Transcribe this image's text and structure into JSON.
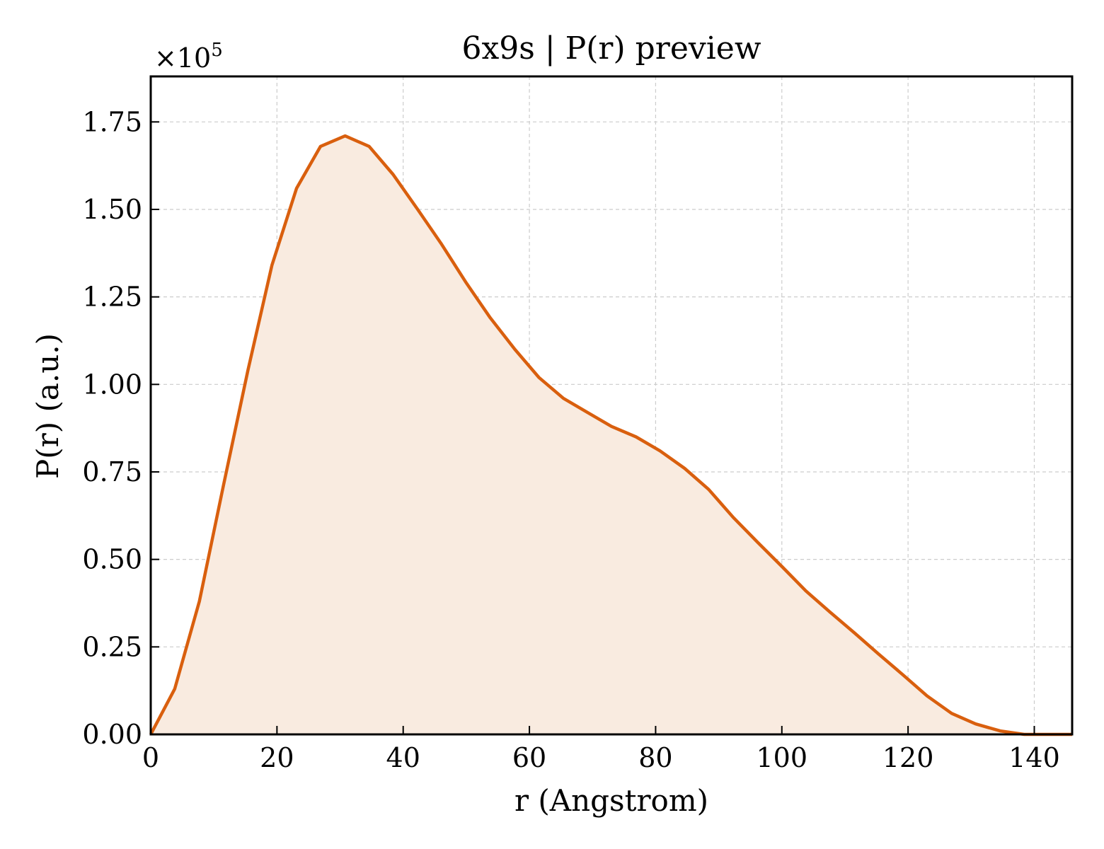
{
  "chart_data": {
    "type": "area",
    "title": "6x9s | P(r) preview",
    "xlabel": "r (Angstrom)",
    "ylabel": "P(r) (a.u.)",
    "y_multiplier_label": "×10",
    "y_multiplier_exponent": "5",
    "y_scale": 100000,
    "xlim": [
      0,
      146
    ],
    "ylim": [
      0,
      1.88
    ],
    "xticks": [
      0,
      20,
      40,
      60,
      80,
      100,
      120,
      140
    ],
    "xtick_labels": [
      "0",
      "20",
      "40",
      "60",
      "80",
      "100",
      "120",
      "140"
    ],
    "yticks": [
      0,
      0.25,
      0.5,
      0.75,
      1.0,
      1.25,
      1.5,
      1.75
    ],
    "ytick_labels": [
      "0.00",
      "0.25",
      "0.50",
      "0.75",
      "1.00",
      "1.25",
      "1.50",
      "1.75"
    ],
    "grid": true,
    "line_color": "#d95f0e",
    "fill_color": "#f9ebe0",
    "series": [
      {
        "x": [
          0,
          3.8,
          7.7,
          11.5,
          15.4,
          19.2,
          23.1,
          26.9,
          30.8,
          34.6,
          38.4,
          42.3,
          46.1,
          50.0,
          53.8,
          57.7,
          61.5,
          65.4,
          69.2,
          73.0,
          76.9,
          80.7,
          84.6,
          88.4,
          92.3,
          96.1,
          100.0,
          103.8,
          107.6,
          111.5,
          115.3,
          119.2,
          123.0,
          126.9,
          130.7,
          134.6,
          138.4,
          142.2,
          146.0
        ],
        "y": [
          0.0,
          0.13,
          0.38,
          0.71,
          1.04,
          1.34,
          1.56,
          1.68,
          1.71,
          1.68,
          1.6,
          1.5,
          1.4,
          1.29,
          1.19,
          1.1,
          1.02,
          0.96,
          0.92,
          0.88,
          0.85,
          0.81,
          0.76,
          0.7,
          0.62,
          0.55,
          0.48,
          0.41,
          0.35,
          0.29,
          0.23,
          0.17,
          0.11,
          0.06,
          0.03,
          0.01,
          0.0,
          0.0,
          0.0
        ]
      }
    ]
  }
}
